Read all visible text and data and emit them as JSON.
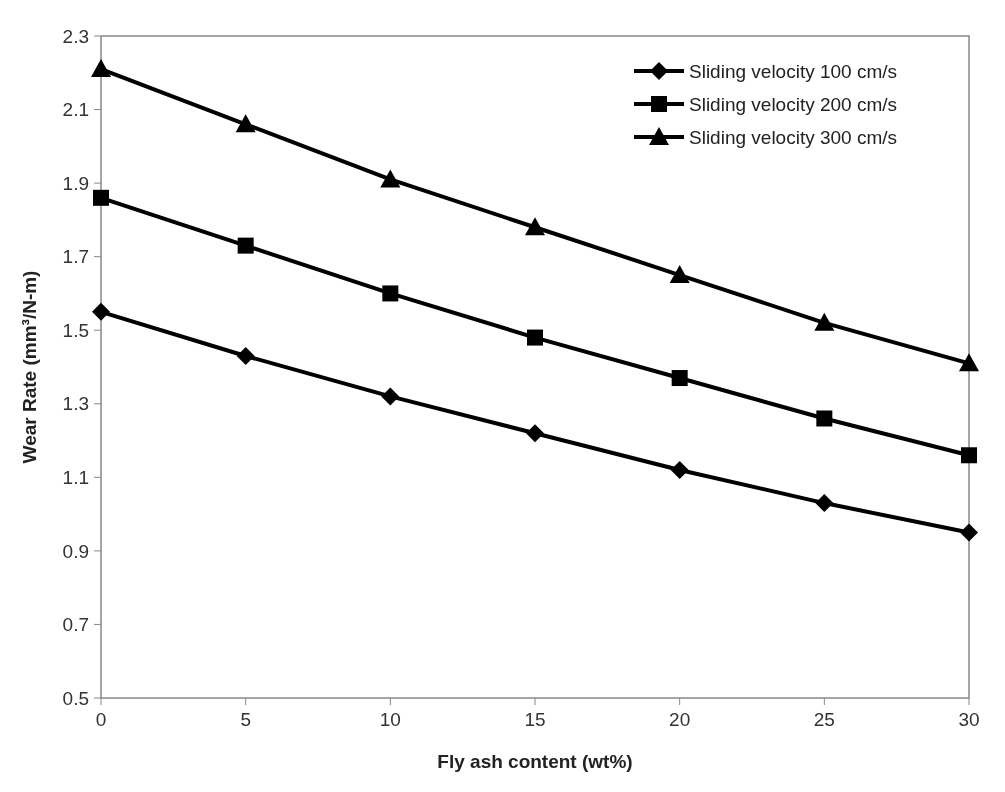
{
  "chart_data": {
    "type": "line",
    "xlabel": "Fly ash content (wt%)",
    "ylabel": "Wear Rate (mm³/N-m)",
    "x": [
      0,
      5,
      10,
      15,
      20,
      25,
      30
    ],
    "series": [
      {
        "name": "Sliding velocity 100 cm/s",
        "color": "#000000",
        "marker": "diamond",
        "values": [
          1.55,
          1.43,
          1.32,
          1.22,
          1.12,
          1.03,
          0.95
        ]
      },
      {
        "name": "Sliding velocity 200 cm/s",
        "color": "#000000",
        "marker": "square",
        "values": [
          1.86,
          1.73,
          1.6,
          1.48,
          1.37,
          1.26,
          1.16
        ]
      },
      {
        "name": "Sliding velocity 300 cm/s",
        "color": "#000000",
        "marker": "triangle",
        "values": [
          2.21,
          2.06,
          1.91,
          1.78,
          1.65,
          1.52,
          1.41
        ]
      }
    ],
    "xlim": [
      0,
      30
    ],
    "xticks": [
      0,
      5,
      10,
      15,
      20,
      25,
      30
    ],
    "ylim": [
      0.5,
      2.3
    ],
    "yticks": [
      {
        "value": 0.5,
        "label": "0.5"
      },
      {
        "value": 0.7,
        "label": "0.7"
      },
      {
        "value": 0.9,
        "label": "0.9"
      },
      {
        "value": 1.1,
        "label": "1.1"
      },
      {
        "value": 1.3,
        "label": "1.3"
      },
      {
        "value": 1.5,
        "label": "1.5"
      },
      {
        "value": 1.7,
        "label": "1.7"
      },
      {
        "value": 1.9,
        "label": "1.9"
      },
      {
        "value": 2.1,
        "label": "2.1"
      },
      {
        "value": 2.3,
        "label": "2.3"
      }
    ],
    "grid": false,
    "legend": "top right",
    "line_style": "solid"
  }
}
